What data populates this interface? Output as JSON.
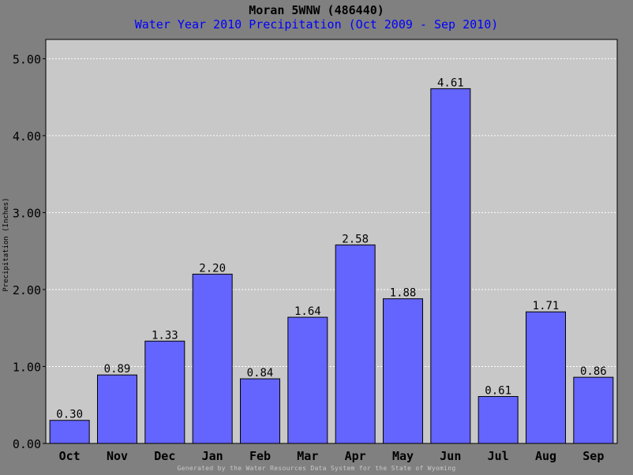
{
  "chart_data": {
    "type": "bar",
    "title": "Moran 5WNW (486440)",
    "subtitle": "Water Year 2010 Precipitation (Oct 2009 - Sep 2010)",
    "xlabel": "",
    "ylabel": "Precipitation (Inches)",
    "footer": "Generated by the Water Resources Data System for the State of Wyoming",
    "categories": [
      "Oct",
      "Nov",
      "Dec",
      "Jan",
      "Feb",
      "Mar",
      "Apr",
      "May",
      "Jun",
      "Jul",
      "Aug",
      "Sep"
    ],
    "values": [
      0.3,
      0.89,
      1.33,
      2.2,
      0.84,
      1.64,
      2.58,
      1.88,
      4.61,
      0.61,
      1.71,
      0.86
    ],
    "value_labels": [
      "0.30",
      "0.89",
      "1.33",
      "2.20",
      "0.84",
      "1.64",
      "2.58",
      "1.88",
      "4.61",
      "0.61",
      "1.71",
      "0.86"
    ],
    "yticks": [
      "0.00",
      "1.00",
      "2.00",
      "3.00",
      "4.00",
      "5.00"
    ],
    "ylim": [
      0,
      5.25
    ],
    "grid": true,
    "legend": "none",
    "colors": {
      "page_background": "#808080",
      "plot_background": "#c8c8c8",
      "bar_fill": "#6464ff",
      "title": "#000000",
      "subtitle": "#0000ff",
      "grid": "#ffffff"
    }
  }
}
